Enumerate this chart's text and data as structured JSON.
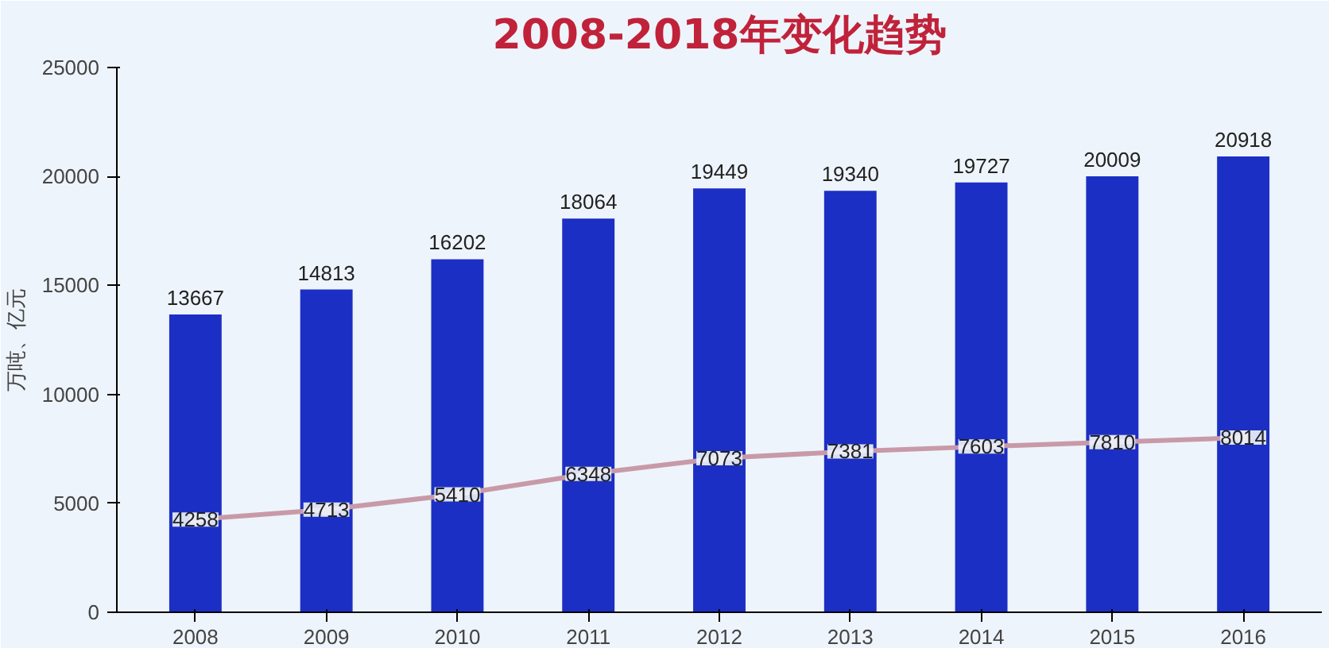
{
  "chart_data": {
    "type": "bar",
    "title": "2008-2018年变化趋势",
    "ylabel": "万吨、亿元",
    "categories": [
      "2008",
      "2009",
      "2010",
      "2011",
      "2012",
      "2013",
      "2014",
      "2015",
      "2016"
    ],
    "series": [
      {
        "color": "#1c2fc4",
        "values": [
          13667,
          14813,
          16202,
          18064,
          19449,
          19340,
          19727,
          20009,
          20918
        ]
      },
      {
        "type": "line",
        "color": "#c89aa8",
        "values": [
          4258,
          4713,
          5410,
          6348,
          7073,
          7381,
          7603,
          7810,
          8014
        ],
        "marker": "circle"
      }
    ],
    "ylim": [
      0,
      25000
    ],
    "yticks": [
      0,
      5000,
      10000,
      15000,
      20000,
      25000
    ],
    "data_labels": true,
    "grid": false
  }
}
